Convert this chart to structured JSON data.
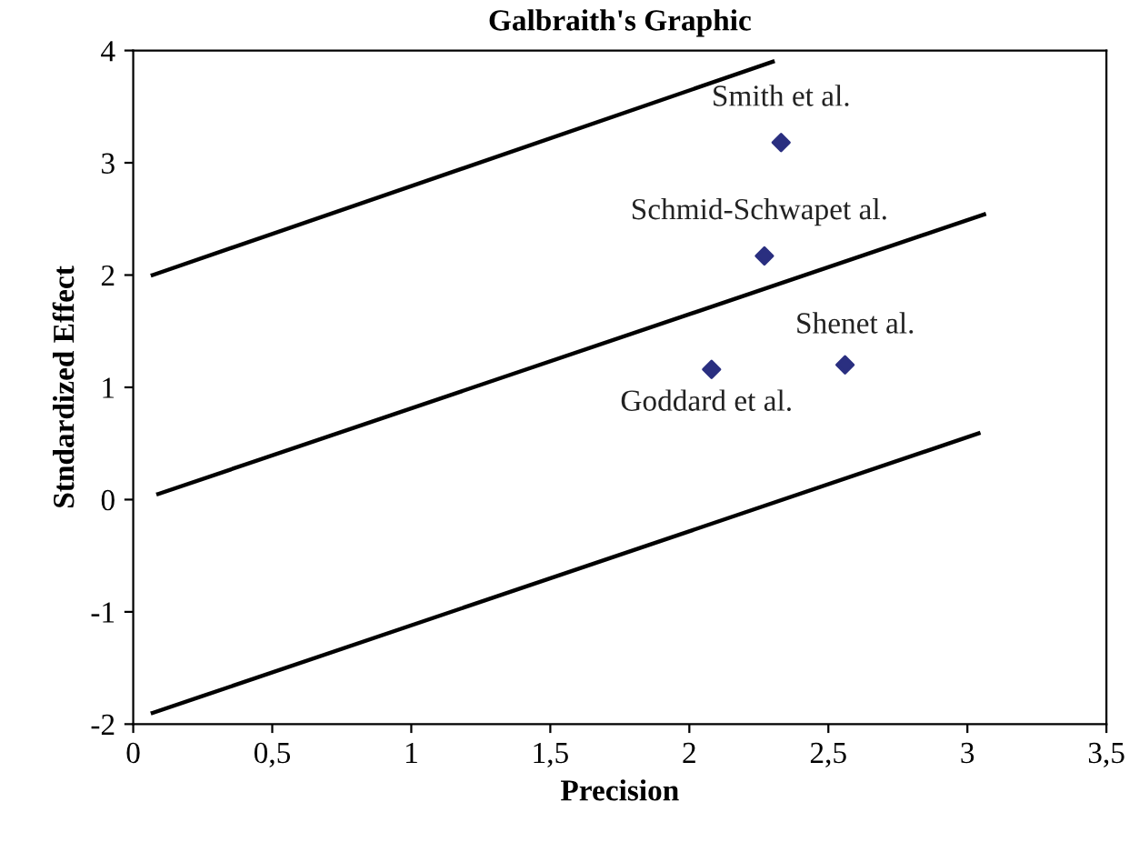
{
  "chart_data": {
    "type": "scatter",
    "title": "Galbraith's Graphic",
    "xlabel": "Precision",
    "ylabel": "Stndardized Effect",
    "series": [
      {
        "type": "line",
        "color": "#000000",
        "x": [
          0.07,
          2.3
        ],
        "values": [
          2.0,
          3.9
        ]
      },
      {
        "type": "line",
        "color": "#000000",
        "x": [
          0.09,
          3.06
        ],
        "values": [
          0.05,
          2.54
        ]
      },
      {
        "type": "line",
        "color": "#000000",
        "x": [
          0.07,
          3.04
        ],
        "values": [
          -1.9,
          0.59
        ]
      },
      {
        "color": "#2a2f80",
        "marker": "diamond",
        "x": [
          2.33,
          2.27,
          2.08,
          2.56
        ],
        "values": [
          3.18,
          2.17,
          1.16,
          1.2
        ]
      }
    ],
    "annotations": [
      {
        "text": "Smith et al.",
        "x": 2.33,
        "y": 3.18
      },
      {
        "text": "Schmid-Schwapet al.",
        "x": 2.27,
        "y": 2.17
      },
      {
        "text": "Goddard et al.",
        "x": 2.08,
        "y": 1.16
      },
      {
        "text": "Shenet al.",
        "x": 2.56,
        "y": 1.2
      }
    ],
    "xlim": [
      0,
      3.5
    ],
    "ylim": [
      -2,
      4
    ],
    "xticks": [
      0,
      {
        "value": 0.5,
        "label": "0,5"
      },
      1,
      {
        "value": 1.5,
        "label": "1,5"
      },
      2,
      {
        "value": 2.5,
        "label": "2,5"
      },
      3,
      {
        "value": 3.5,
        "label": "3,5"
      }
    ],
    "yticks": [
      -2,
      -1,
      0,
      1,
      2,
      3,
      4
    ],
    "grid": false,
    "legend": false
  }
}
